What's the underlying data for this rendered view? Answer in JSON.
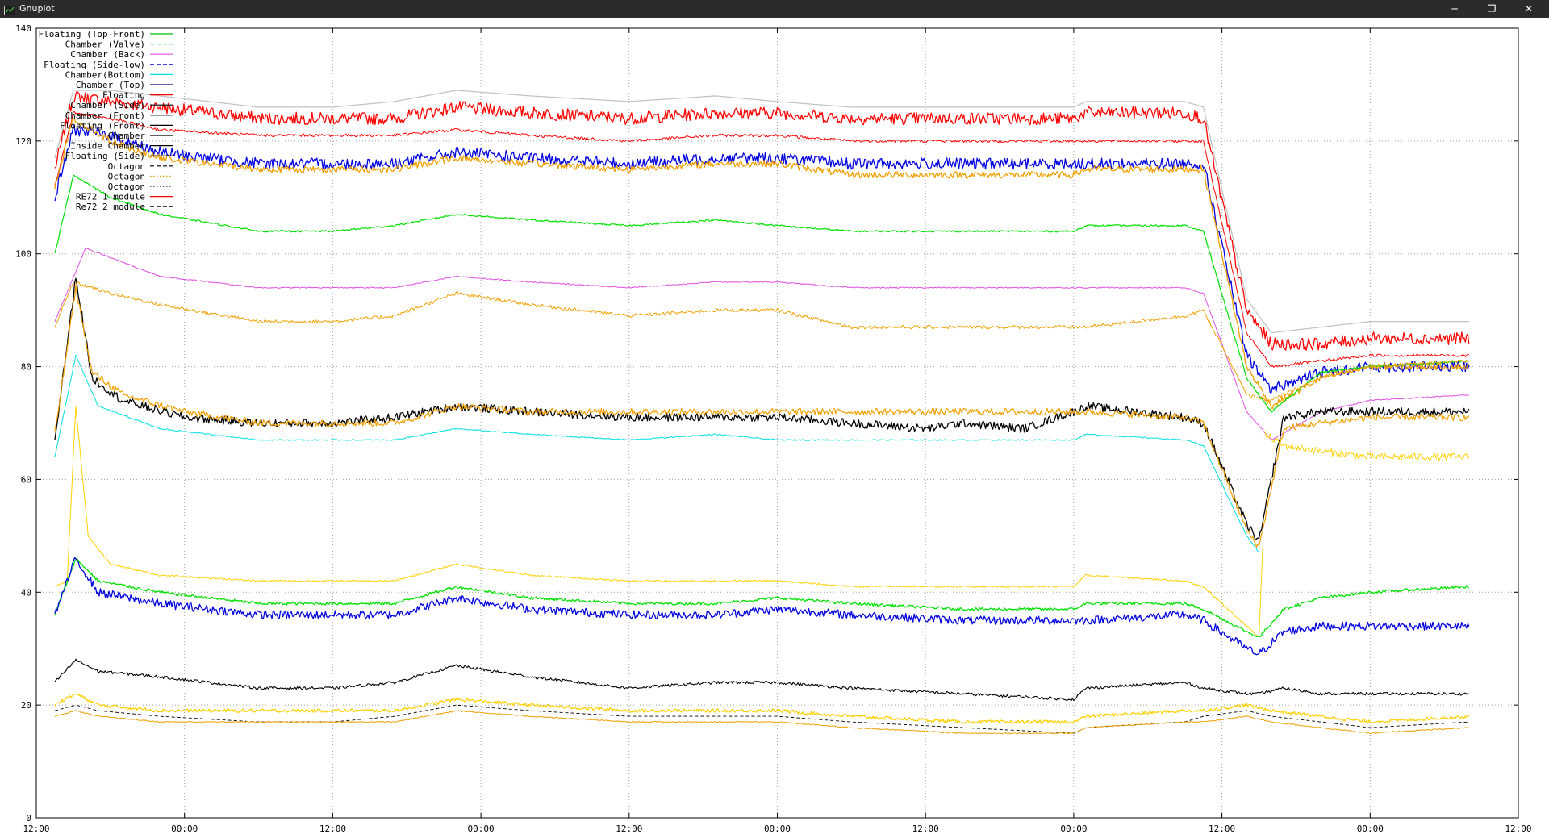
{
  "window": {
    "title": "Gnuplot",
    "minimize_symbol": "─",
    "maximize_symbol": "❐",
    "close_symbol": "✕"
  },
  "chart_data": {
    "type": "line",
    "x_label": "",
    "y_label": "",
    "ylim": [
      0,
      140
    ],
    "y_ticks": [
      "0",
      "20",
      "40",
      "60",
      "80",
      "100",
      "120",
      "140"
    ],
    "x_tick_labels": [
      "12:00",
      "00:00",
      "12:00",
      "00:00",
      "12:00",
      "00:00",
      "12:00",
      "00:00",
      "12:00",
      "00:00",
      "12:00"
    ],
    "x_hours": [
      0,
      12,
      24,
      36,
      48,
      60,
      72,
      84,
      96,
      108,
      120
    ],
    "xlim_hours": [
      0,
      120
    ],
    "grid": true,
    "legend_position": "top-left, inside",
    "legend": [
      {
        "label": "Floating (Top-Front)",
        "color": "#00c000",
        "dash": "solid"
      },
      {
        "label": "Chamber (Valve)",
        "color": "#00c000",
        "dash": "dashed"
      },
      {
        "label": "Chamber (Back)",
        "color": "#e050e0",
        "dash": "solid"
      },
      {
        "label": "Floating (Side-low)",
        "color": "#0000e0",
        "dash": "dashed"
      },
      {
        "label": "Chamber(Bottom)",
        "color": "#00e0e0",
        "dash": "solid"
      },
      {
        "label": "Chamber (Top)",
        "color": "#000080",
        "dash": "solid"
      },
      {
        "label": "Floating",
        "color": "#ff0000",
        "dash": "solid"
      },
      {
        "label": "Chamber (Side)",
        "color": "#000000",
        "dash": "solid"
      },
      {
        "label": "Chamber (Front)",
        "color": "#000000",
        "dash": "solid"
      },
      {
        "label": "Floating (Front)",
        "color": "#000000",
        "dash": "solid"
      },
      {
        "label": "Chamber",
        "color": "#000000",
        "dash": "solid"
      },
      {
        "label": "Inside Chamber",
        "color": "#000000",
        "dash": "solid"
      },
      {
        "label": "Floating (Side)",
        "color": "#000000",
        "dash": "solid"
      },
      {
        "label": "Octagon",
        "color": "#000000",
        "dash": "dashed"
      },
      {
        "label": "Octagon",
        "color": "#e0a000",
        "dash": "dotted"
      },
      {
        "label": "Octagon",
        "color": "#000000",
        "dash": "dotted"
      },
      {
        "label": "RE72 1 module",
        "color": "#ff0000",
        "dash": "solid"
      },
      {
        "label": "Re72 2 module",
        "color": "#000000",
        "dash": "dashed"
      }
    ],
    "series": [
      {
        "color": "#c0c0c0",
        "width": 1.2,
        "noise": 0,
        "x": [
          1.5,
          3,
          6,
          10,
          18,
          24,
          29,
          34,
          40,
          48,
          55,
          60,
          66,
          75,
          84,
          85,
          93,
          94.5,
          98,
          100,
          104,
          108,
          116
        ],
        "y": [
          117,
          129,
          129,
          128,
          126,
          126,
          127,
          129,
          128,
          127,
          128,
          127,
          126,
          126,
          126,
          127,
          127,
          126,
          92,
          86,
          87,
          88,
          88
        ]
      },
      {
        "color": "#ff0000",
        "width": 1.3,
        "noise": 2.2,
        "x": [
          1.5,
          3,
          6,
          10,
          18,
          24,
          29,
          34,
          40,
          48,
          55,
          60,
          66,
          75,
          84,
          85,
          93,
          94.5,
          98,
          100,
          104,
          108,
          116
        ],
        "y": [
          115,
          128,
          127,
          126,
          124,
          124,
          124,
          126,
          125,
          124,
          125,
          125,
          124,
          124,
          124,
          125,
          125,
          124,
          90,
          84,
          84,
          85,
          85
        ]
      },
      {
        "color": "#ff0000",
        "width": 1.0,
        "noise": 0.5,
        "x": [
          1.5,
          3,
          6,
          10,
          18,
          24,
          29,
          34,
          40,
          48,
          55,
          60,
          66,
          75,
          84,
          85,
          93,
          94.5,
          98,
          100,
          104,
          108,
          116
        ],
        "y": [
          112,
          125,
          124,
          122,
          121,
          121,
          121,
          122,
          121,
          120,
          121,
          121,
          120,
          120,
          120,
          120,
          120,
          120,
          86,
          80,
          81,
          82,
          82
        ]
      },
      {
        "color": "#0000e0",
        "width": 1.3,
        "noise": 2.0,
        "x": [
          1.5,
          3,
          6,
          10,
          18,
          24,
          29,
          34,
          40,
          48,
          55,
          60,
          66,
          75,
          84,
          85,
          93,
          94.5,
          98,
          100,
          104,
          108,
          116
        ],
        "y": [
          110,
          122,
          121,
          118,
          116,
          116,
          116,
          118,
          117,
          116,
          117,
          117,
          116,
          116,
          116,
          116,
          116,
          116,
          82,
          76,
          79,
          80,
          80
        ]
      },
      {
        "color": "#f0a000",
        "width": 1.3,
        "noise": 1.2,
        "x": [
          1.5,
          3,
          6,
          10,
          18,
          24,
          29,
          34,
          40,
          48,
          55,
          60,
          66,
          75,
          84,
          85,
          93,
          94.5,
          98,
          100,
          104,
          108,
          116
        ],
        "y": [
          112,
          124,
          120,
          117,
          115,
          115,
          115,
          117,
          116,
          115,
          116,
          116,
          114,
          114,
          114,
          115,
          115,
          115,
          80,
          73,
          78,
          80,
          80
        ]
      },
      {
        "color": "#00e000",
        "width": 1.2,
        "noise": 0.3,
        "x": [
          1.5,
          3,
          6,
          10,
          18,
          24,
          29,
          34,
          40,
          48,
          55,
          60,
          66,
          75,
          84,
          85,
          93,
          94.5,
          98,
          100,
          104,
          108,
          116
        ],
        "y": [
          100,
          114,
          110,
          107,
          104,
          104,
          105,
          107,
          106,
          105,
          106,
          105,
          104,
          104,
          104,
          105,
          105,
          104,
          78,
          72,
          79,
          80,
          81
        ]
      },
      {
        "color": "#e050e0",
        "width": 1.0,
        "noise": 0.2,
        "x": [
          1.5,
          4,
          10,
          18,
          24,
          29,
          34,
          40,
          48,
          55,
          60,
          66,
          75,
          84,
          85,
          93,
          94.5,
          98,
          100,
          104,
          108,
          116
        ],
        "y": [
          88,
          101,
          96,
          94,
          94,
          94,
          96,
          95,
          94,
          95,
          95,
          94,
          94,
          94,
          94,
          94,
          93,
          72,
          67,
          72,
          74,
          75
        ]
      },
      {
        "color": "#f0a000",
        "width": 1.0,
        "noise": 0.6,
        "x": [
          1.5,
          3,
          6,
          10,
          18,
          24,
          29,
          34,
          40,
          48,
          55,
          60,
          66,
          75,
          84,
          85,
          93,
          94.5,
          98,
          100,
          104,
          108,
          116
        ],
        "y": [
          87,
          95,
          93,
          91,
          88,
          88,
          89,
          93,
          91,
          89,
          90,
          90,
          87,
          87,
          87,
          87,
          89,
          90,
          75,
          74,
          78,
          80,
          81
        ]
      },
      {
        "color": "#000000",
        "width": 1.3,
        "noise": 1.5,
        "x": [
          1.5,
          3.2,
          4.5,
          7,
          12,
          18,
          24,
          29,
          34,
          40,
          48,
          55,
          60,
          66,
          72,
          75,
          80,
          84,
          85,
          93,
          94.5,
          98,
          99,
          101,
          104,
          108,
          116
        ],
        "y": [
          67,
          96,
          78,
          74,
          71,
          70,
          70,
          71,
          73,
          72,
          71,
          71,
          71,
          70,
          69,
          70,
          69,
          72,
          73,
          71,
          70,
          52,
          49,
          71,
          72,
          72,
          72
        ]
      },
      {
        "color": "#f0a000",
        "width": 1.2,
        "noise": 1.2,
        "x": [
          1.5,
          3.2,
          4.5,
          7,
          12,
          18,
          24,
          29,
          34,
          40,
          48,
          55,
          60,
          66,
          75,
          84,
          85,
          93,
          94.5,
          98,
          99,
          101,
          104,
          108,
          116
        ],
        "y": [
          68,
          94,
          79,
          75,
          72,
          70,
          70,
          70,
          73,
          72,
          72,
          72,
          72,
          72,
          72,
          72,
          72,
          71,
          70,
          51,
          48,
          69,
          70,
          71,
          71
        ]
      },
      {
        "color": "#ffd000",
        "width": 1.0,
        "noise": 1.3,
        "x": [
          99.5,
          101,
          104,
          108,
          116
        ],
        "y": [
          68,
          66,
          65,
          64,
          64
        ]
      },
      {
        "color": "#00e0e0",
        "width": 1.0,
        "noise": 0.2,
        "x": [
          1.5,
          3.2,
          5,
          10,
          18,
          24,
          29,
          34,
          40,
          48,
          55,
          60,
          66,
          75,
          84,
          85,
          93,
          94.5,
          98,
          99
        ],
        "y": [
          64,
          82,
          73,
          69,
          67,
          67,
          67,
          69,
          68,
          67,
          68,
          67,
          67,
          67,
          67,
          68,
          67,
          66,
          50,
          47
        ]
      },
      {
        "color": "#ffd000",
        "width": 1.0,
        "noise": 0.3,
        "x": [
          1.5,
          2.5,
          3.2,
          4.2,
          6,
          10,
          18,
          24,
          29,
          34,
          40,
          48,
          55,
          60,
          66,
          75,
          84,
          85,
          93,
          94.5,
          98,
          99,
          99.3
        ],
        "y": [
          41,
          42,
          73,
          50,
          45,
          43,
          42,
          42,
          42,
          45,
          43,
          42,
          42,
          42,
          41,
          41,
          41,
          43,
          42,
          41,
          34,
          32,
          48
        ]
      },
      {
        "color": "#00e000",
        "width": 1.3,
        "noise": 0.5,
        "x": [
          1.5,
          3.2,
          5,
          10,
          18,
          24,
          29,
          34,
          40,
          48,
          55,
          60,
          66,
          75,
          84,
          85,
          93,
          94.5,
          98,
          99,
          101,
          104,
          108,
          116
        ],
        "y": [
          36,
          46,
          42,
          40,
          38,
          38,
          38,
          41,
          39,
          38,
          38,
          39,
          38,
          37,
          37,
          38,
          38,
          37,
          33,
          32,
          37,
          39,
          40,
          41
        ]
      },
      {
        "color": "#0000e0",
        "width": 1.3,
        "noise": 1.5,
        "x": [
          1.5,
          3.2,
          5,
          10,
          18,
          24,
          29,
          34,
          40,
          48,
          55,
          60,
          66,
          75,
          84,
          85,
          93,
          94.5,
          98,
          99,
          101,
          104,
          108,
          116
        ],
        "y": [
          36,
          46,
          40,
          38,
          36,
          36,
          36,
          39,
          37,
          36,
          36,
          37,
          36,
          35,
          35,
          35,
          36,
          35,
          30,
          29,
          33,
          34,
          34,
          34
        ]
      },
      {
        "color": "#000000",
        "width": 1.1,
        "noise": 0.5,
        "x": [
          1.5,
          3.2,
          5,
          10,
          18,
          24,
          29,
          34,
          40,
          48,
          55,
          60,
          66,
          75,
          84,
          85,
          93,
          94.5,
          98,
          99,
          101,
          104,
          108,
          116
        ],
        "y": [
          24,
          28,
          26,
          25,
          23,
          23,
          24,
          27,
          25,
          23,
          24,
          24,
          23,
          22,
          21,
          23,
          24,
          23,
          22,
          22,
          23,
          22,
          22,
          22
        ]
      },
      {
        "color": "#ffd000",
        "width": 1.3,
        "noise": 0.6,
        "x": [
          1.5,
          3.2,
          5,
          10,
          18,
          24,
          29,
          34,
          40,
          48,
          55,
          60,
          66,
          75,
          84,
          85,
          93,
          94.5,
          98,
          100,
          104,
          108,
          116
        ],
        "y": [
          20,
          22,
          20,
          19,
          19,
          19,
          19,
          21,
          20,
          19,
          19,
          19,
          18,
          17,
          17,
          18,
          19,
          19,
          20,
          19,
          18,
          17,
          18
        ]
      },
      {
        "color": "#000000",
        "width": 0.9,
        "noise": 0,
        "dash": "4,3",
        "x": [
          1.5,
          3.2,
          5,
          10,
          18,
          24,
          29,
          34,
          40,
          48,
          55,
          60,
          66,
          75,
          84,
          85,
          93,
          94.5,
          98,
          100,
          104,
          108,
          116
        ],
        "y": [
          19,
          20,
          19,
          18,
          17,
          17,
          18,
          20,
          19,
          18,
          18,
          18,
          17,
          16,
          15,
          16,
          17,
          18,
          19,
          18,
          17,
          16,
          17
        ]
      },
      {
        "color": "#f0a000",
        "width": 1.0,
        "noise": 0.2,
        "x": [
          1.5,
          3.2,
          5,
          10,
          18,
          24,
          29,
          34,
          40,
          48,
          55,
          60,
          66,
          75,
          84,
          85,
          93,
          94.5,
          98,
          100,
          104,
          108,
          116
        ],
        "y": [
          18,
          19,
          18,
          17,
          17,
          17,
          17,
          19,
          18,
          17,
          17,
          17,
          16,
          15,
          15,
          16,
          17,
          17,
          18,
          17,
          16,
          15,
          16
        ]
      }
    ]
  }
}
